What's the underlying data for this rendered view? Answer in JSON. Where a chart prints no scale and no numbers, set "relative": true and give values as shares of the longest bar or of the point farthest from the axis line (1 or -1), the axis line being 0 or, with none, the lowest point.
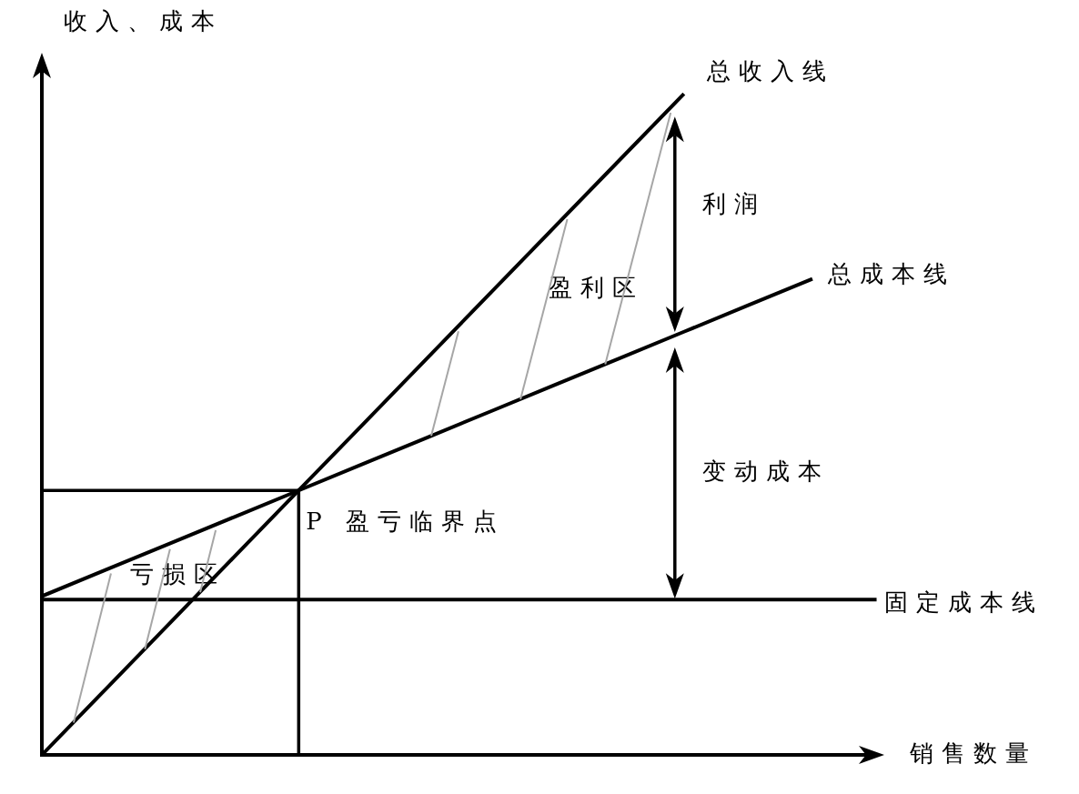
{
  "chart_data": {
    "type": "line",
    "relative": true,
    "xlabel": "销售数量",
    "ylabel": "收入、成本",
    "marker": "none",
    "line_style": "solid",
    "categories": [
      null,
      null,
      null,
      null,
      null,
      null,
      null,
      null,
      null,
      null,
      null,
      null,
      null,
      null
    ],
    "series": [
      {
        "name": "总收入线",
        "color": "#000000",
        "values": [
          0,
          0.1,
          0.2,
          0.3,
          0.4,
          0.5,
          0.6,
          0.7,
          0.8,
          0.9,
          1,
          null,
          null,
          null
        ]
      },
      {
        "name": "总成本线",
        "color": "#000000",
        "values": [
          0.24,
          0.28,
          0.32,
          0.36,
          0.4,
          0.44,
          0.48,
          0.52,
          0.56,
          0.6,
          0.64,
          0.68,
          0.72,
          null
        ]
      },
      {
        "name": "固定成本线",
        "color": "#000000",
        "values": [
          0.235,
          0.235,
          0.235,
          0.235,
          0.235,
          0.235,
          0.235,
          0.235,
          0.235,
          0.235,
          0.235,
          0.235,
          0.235,
          0.235
        ]
      },
      {
        "type": "step",
        "color": "#000000",
        "values": [
          0.4,
          0.4,
          0.4,
          0.4,
          0.4,
          0,
          null,
          null,
          null,
          null,
          null,
          null,
          null,
          null
        ]
      }
    ],
    "annotations": [
      "利润",
      "变动成本",
      "盈利区",
      "亏损区",
      "P 盈亏临界点"
    ]
  }
}
